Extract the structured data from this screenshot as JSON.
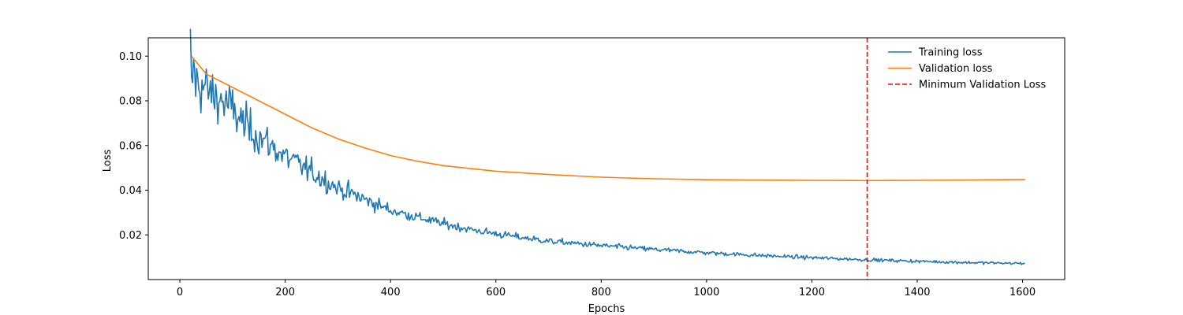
{
  "chart_data": {
    "type": "line",
    "xlabel": "Epochs",
    "ylabel": "Loss",
    "xlim": [
      -60,
      1680
    ],
    "ylim": [
      0.0,
      0.1082
    ],
    "xticks": [
      0,
      200,
      400,
      600,
      800,
      1000,
      1200,
      1400,
      1600
    ],
    "yticks": [
      0.02,
      0.04,
      0.06,
      0.08,
      0.1
    ],
    "ytick_labels": [
      "0.02",
      "0.04",
      "0.06",
      "0.08",
      "0.10"
    ],
    "grid": false,
    "legend_position": "upper right, inside axes, no frame",
    "series": [
      {
        "name": "Training loss",
        "color": "#1f77b4",
        "style": "solid",
        "noisy": true,
        "x": [
          20,
          22,
          26,
          30,
          40,
          60,
          80,
          100,
          120,
          150,
          200,
          250,
          300,
          350,
          400,
          450,
          500,
          550,
          600,
          650,
          700,
          800,
          900,
          1000,
          1100,
          1200,
          1300,
          1400,
          1500,
          1605
        ],
        "values": [
          0.102,
          0.085,
          0.095,
          0.088,
          0.087,
          0.083,
          0.08,
          0.076,
          0.07,
          0.064,
          0.055,
          0.048,
          0.041,
          0.036,
          0.031,
          0.028,
          0.025,
          0.0225,
          0.0205,
          0.0188,
          0.0172,
          0.0152,
          0.0135,
          0.012,
          0.0108,
          0.0098,
          0.0089,
          0.0082,
          0.0076,
          0.0072
        ]
      },
      {
        "name": "Validation loss",
        "color": "#ff7f0e",
        "style": "solid",
        "x": [
          22,
          50,
          100,
          150,
          200,
          250,
          300,
          350,
          400,
          450,
          500,
          600,
          700,
          800,
          900,
          1000,
          1100,
          1200,
          1305,
          1400,
          1500,
          1605
        ],
        "values": [
          0.1,
          0.092,
          0.086,
          0.08,
          0.074,
          0.068,
          0.063,
          0.059,
          0.0555,
          0.053,
          0.051,
          0.0485,
          0.047,
          0.0458,
          0.0451,
          0.0447,
          0.0445,
          0.0444,
          0.0443,
          0.0444,
          0.0446,
          0.0448
        ]
      }
    ],
    "vlines": [
      {
        "name": "Minimum Validation Loss",
        "x": 1305,
        "color": "#ff0000",
        "style": "dashed"
      }
    ]
  }
}
